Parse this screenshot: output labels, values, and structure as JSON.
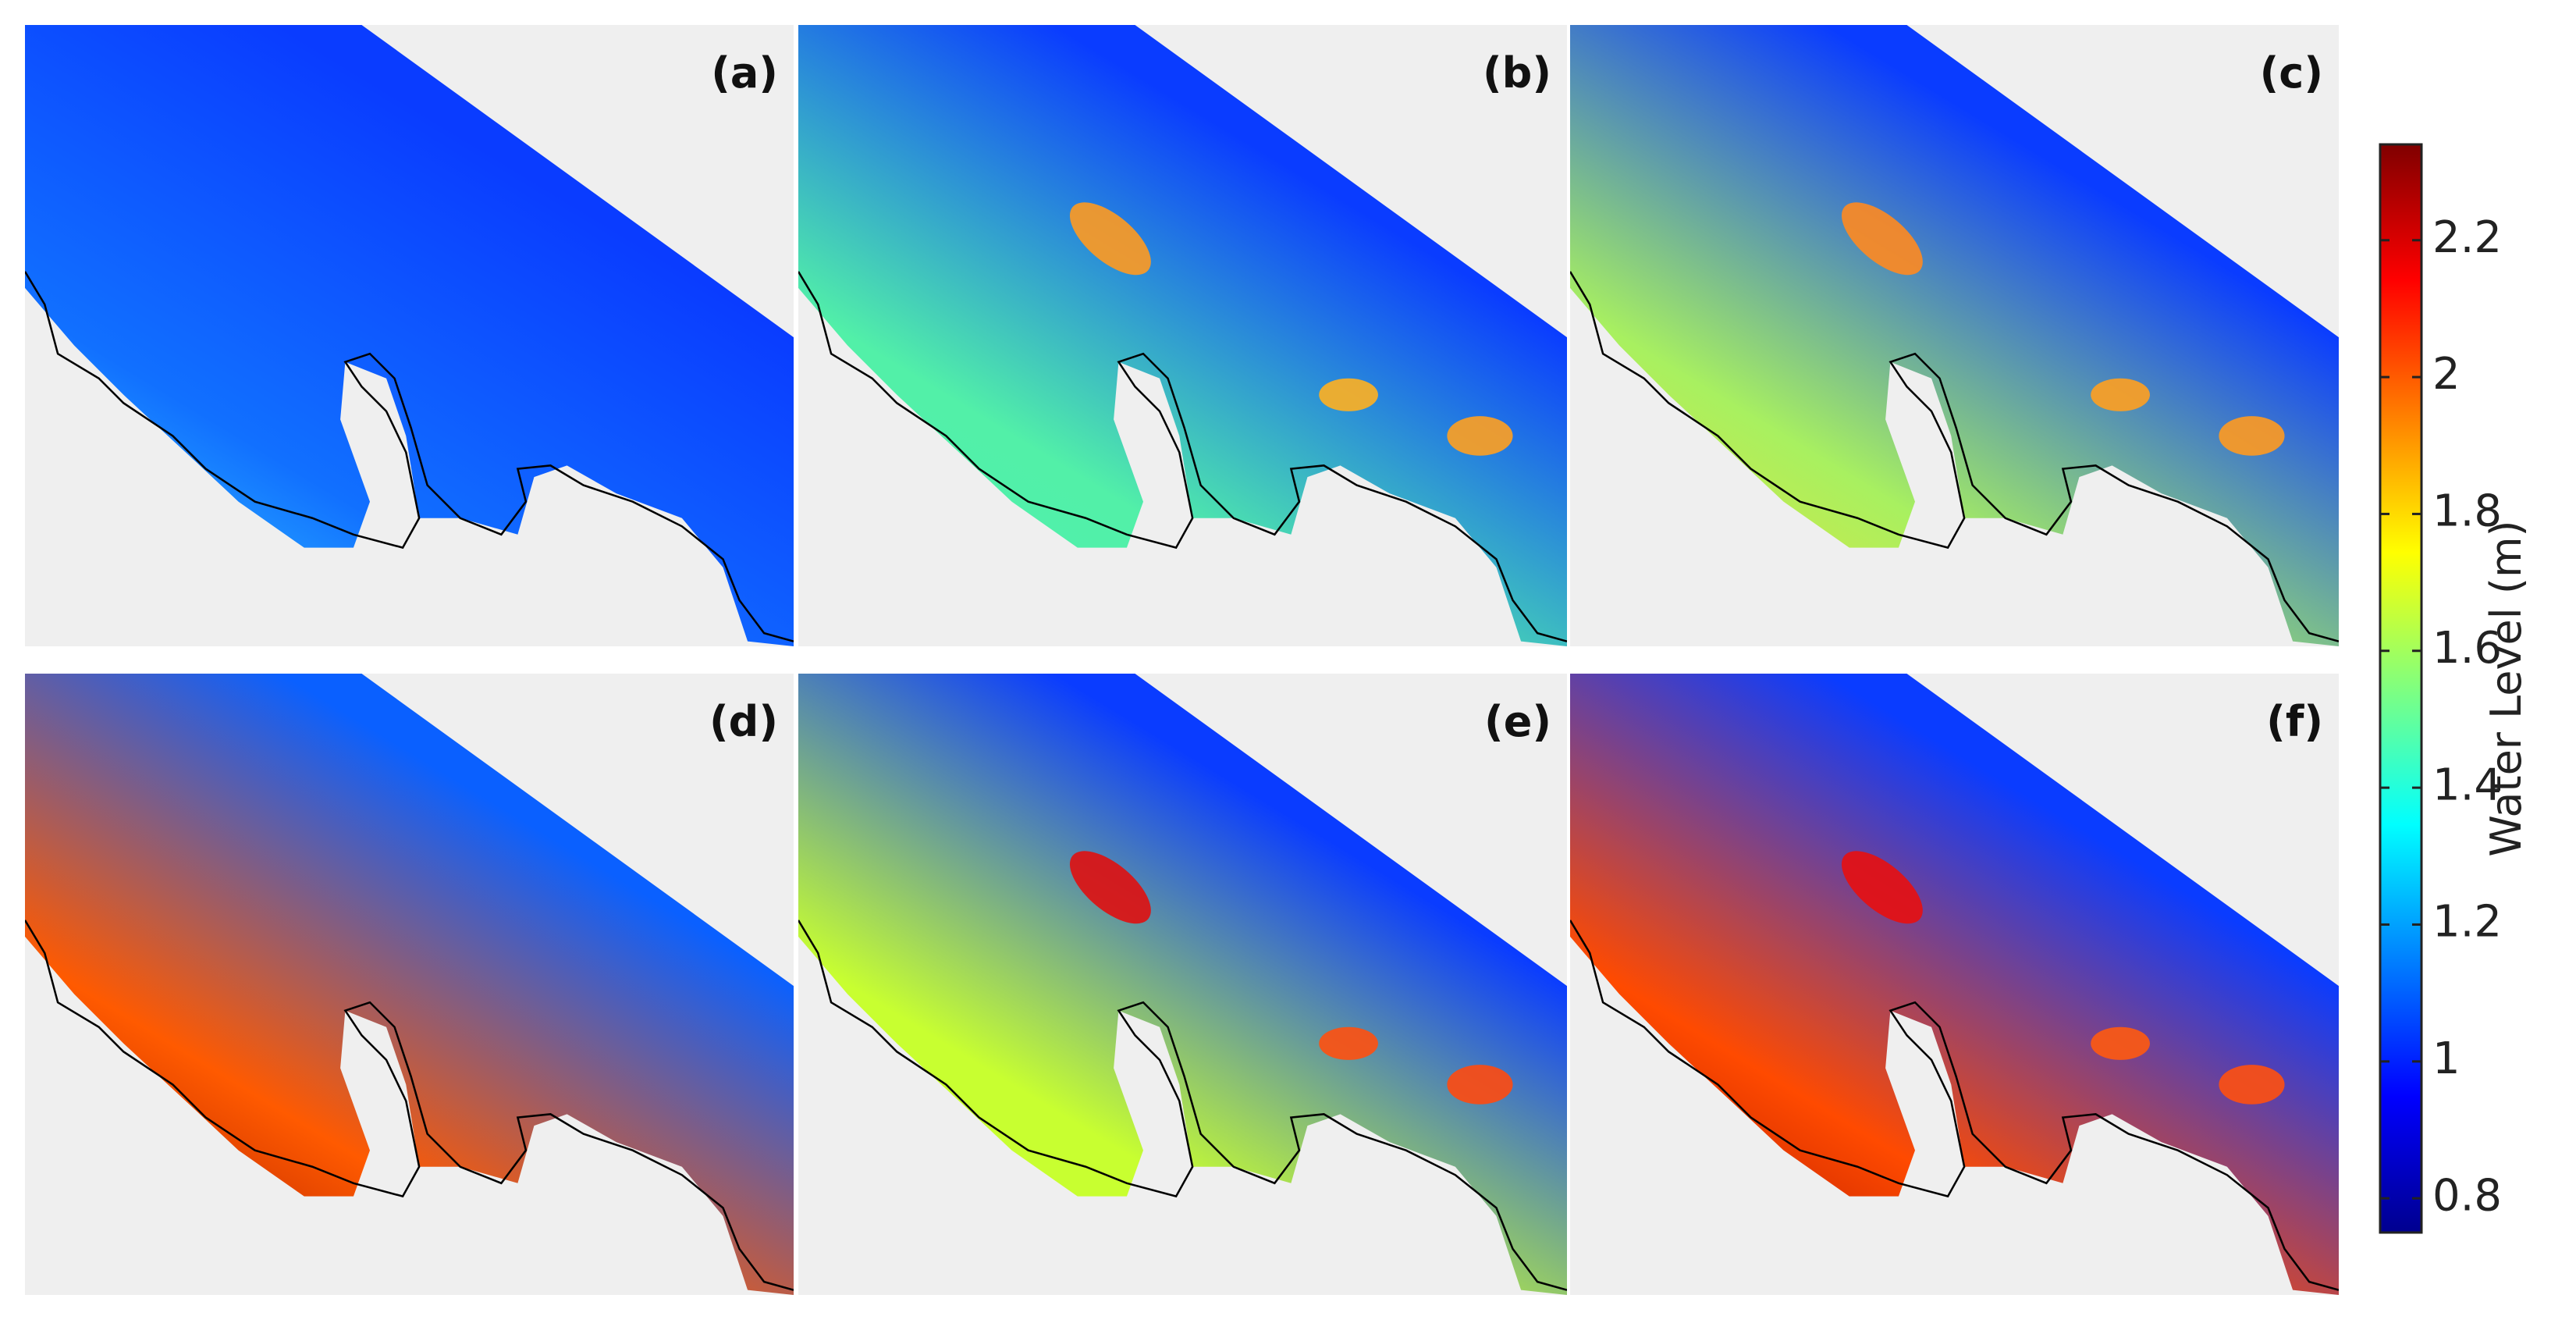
{
  "panels": [
    {
      "label": "(a)"
    },
    {
      "label": "(b)"
    },
    {
      "label": "(c)"
    },
    {
      "label": "(d)"
    },
    {
      "label": "(e)"
    },
    {
      "label": "(f)"
    }
  ],
  "colorbar": {
    "label": "Water Level (m)",
    "lim": [
      0.75,
      2.34
    ],
    "ticks": [
      0.8,
      1,
      1.2,
      1.4,
      1.6,
      1.8,
      2,
      2.2
    ]
  }
}
